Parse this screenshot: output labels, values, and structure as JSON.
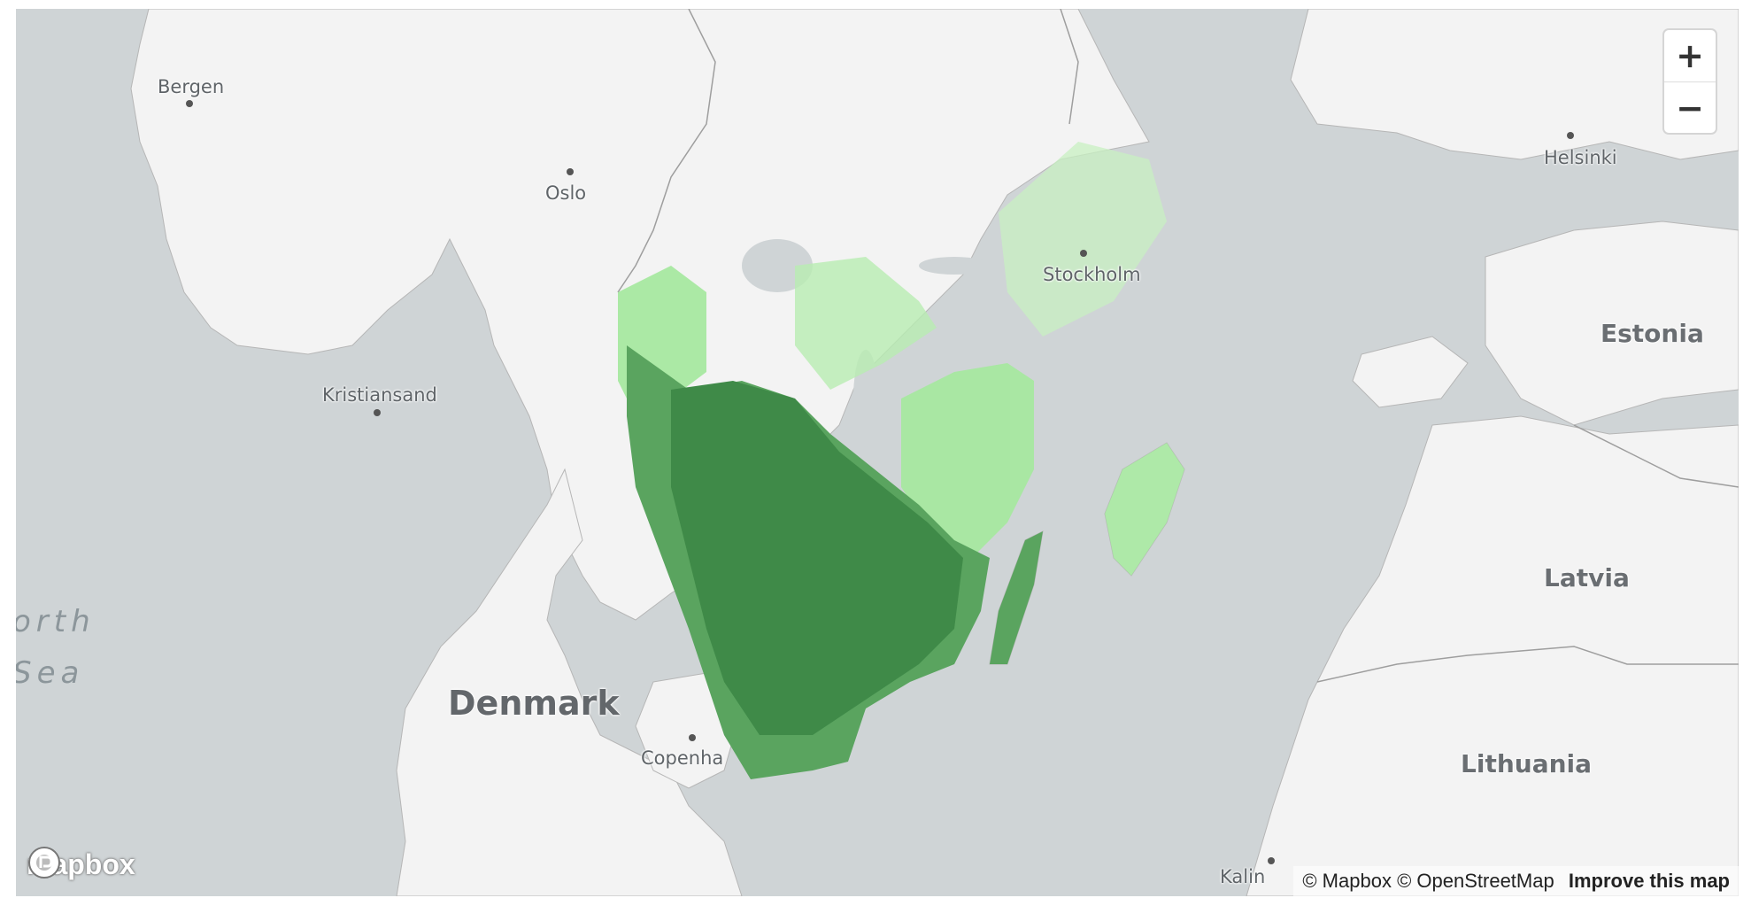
{
  "map": {
    "labels": {
      "bergen": "Bergen",
      "oslo": "Oslo",
      "kristiansand": "Kristiansand",
      "stockholm": "Stockholm",
      "helsinki": "Helsinki",
      "estonia": "Estonia",
      "latvia": "Latvia",
      "lithuania": "Lithuania",
      "denmark": "Denmark",
      "copenhagen": "Copenha",
      "kaliningrad": "Kalin",
      "sea_line1": "orth",
      "sea_line2": "Sea"
    },
    "colors": {
      "water": "#cfd4d6",
      "land": "#f3f3f3",
      "border": "#a9a9a9",
      "density_high": "#3f8a48",
      "density_mid": "#5aa45f",
      "density_low": "#a6e8a0"
    }
  },
  "controls": {
    "zoom_in_label": "+",
    "zoom_out_label": "−",
    "zoom_in_icon": "plus-icon",
    "zoom_out_icon": "minus-icon"
  },
  "attribution": {
    "mapbox": "© Mapbox",
    "osm": "© OpenStreetMap",
    "improve": "Improve this map"
  },
  "logo": {
    "text": "mapbox",
    "icon": "mapbox-logo-icon"
  }
}
